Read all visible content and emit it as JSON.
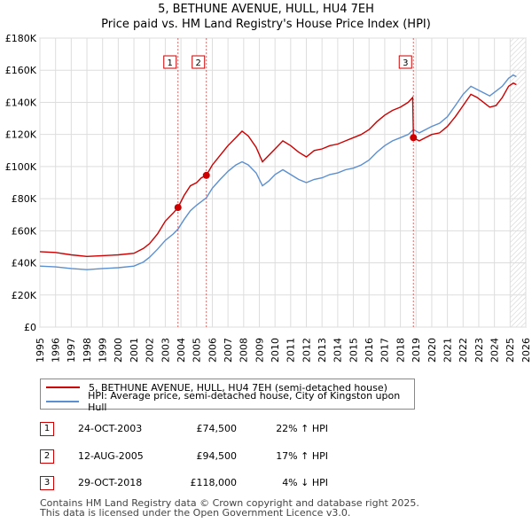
{
  "chart_data": {
    "type": "line",
    "title": "5, BETHUNE AVENUE, HULL, HU4 7EH",
    "subtitle": "Price paid vs. HM Land Registry's House Price Index (HPI)",
    "xlim": [
      1995,
      2026
    ],
    "ylim": [
      0,
      180000
    ],
    "x_ticks": [
      "1995",
      "1996",
      "1997",
      "1998",
      "1999",
      "2000",
      "2001",
      "2002",
      "2003",
      "2004",
      "2005",
      "2006",
      "2007",
      "2008",
      "2009",
      "2010",
      "2011",
      "2012",
      "2013",
      "2014",
      "2015",
      "2016",
      "2017",
      "2018",
      "2019",
      "2020",
      "2021",
      "2022",
      "2023",
      "2024",
      "2025",
      "2026"
    ],
    "y_ticks": [
      {
        "v": 0,
        "label": "£0"
      },
      {
        "v": 20000,
        "label": "£20K"
      },
      {
        "v": 40000,
        "label": "£40K"
      },
      {
        "v": 60000,
        "label": "£60K"
      },
      {
        "v": 80000,
        "label": "£80K"
      },
      {
        "v": 100000,
        "label": "£100K"
      },
      {
        "v": 120000,
        "label": "£120K"
      },
      {
        "v": 140000,
        "label": "£140K"
      },
      {
        "v": 160000,
        "label": "£160K"
      },
      {
        "v": 180000,
        "label": "£180K"
      }
    ],
    "series": [
      {
        "name": "5, BETHUNE AVENUE, HULL, HU4 7EH (semi-detached house)",
        "color": "#cc0000",
        "points": [
          [
            1995.0,
            47000
          ],
          [
            1996.0,
            46500
          ],
          [
            1997.0,
            45000
          ],
          [
            1998.0,
            44000
          ],
          [
            1999.0,
            44500
          ],
          [
            2000.0,
            45000
          ],
          [
            2001.0,
            46000
          ],
          [
            2001.6,
            49000
          ],
          [
            2002.0,
            52000
          ],
          [
            2002.5,
            58000
          ],
          [
            2003.0,
            66000
          ],
          [
            2003.5,
            71000
          ],
          [
            2003.81,
            74500
          ],
          [
            2004.2,
            82000
          ],
          [
            2004.6,
            88000
          ],
          [
            2005.0,
            90000
          ],
          [
            2005.3,
            93000
          ],
          [
            2005.62,
            94500
          ],
          [
            2006.0,
            101000
          ],
          [
            2006.5,
            107000
          ],
          [
            2007.0,
            113000
          ],
          [
            2007.5,
            118000
          ],
          [
            2007.9,
            122000
          ],
          [
            2008.3,
            119000
          ],
          [
            2008.8,
            112000
          ],
          [
            2009.2,
            103000
          ],
          [
            2009.6,
            107000
          ],
          [
            2010.0,
            111000
          ],
          [
            2010.5,
            116000
          ],
          [
            2011.0,
            113000
          ],
          [
            2011.5,
            109000
          ],
          [
            2012.0,
            106000
          ],
          [
            2012.5,
            110000
          ],
          [
            2013.0,
            111000
          ],
          [
            2013.5,
            113000
          ],
          [
            2014.0,
            114000
          ],
          [
            2014.5,
            116000
          ],
          [
            2015.0,
            118000
          ],
          [
            2015.5,
            120000
          ],
          [
            2016.0,
            123000
          ],
          [
            2016.5,
            128000
          ],
          [
            2017.0,
            132000
          ],
          [
            2017.5,
            135000
          ],
          [
            2018.0,
            137000
          ],
          [
            2018.5,
            140000
          ],
          [
            2018.78,
            143000
          ],
          [
            2018.83,
            118000
          ],
          [
            2019.2,
            116000
          ],
          [
            2019.6,
            118000
          ],
          [
            2020.0,
            120000
          ],
          [
            2020.5,
            121000
          ],
          [
            2021.0,
            125000
          ],
          [
            2021.5,
            131000
          ],
          [
            2022.0,
            138000
          ],
          [
            2022.5,
            145000
          ],
          [
            2022.9,
            143000
          ],
          [
            2023.3,
            140000
          ],
          [
            2023.7,
            137000
          ],
          [
            2024.1,
            138000
          ],
          [
            2024.5,
            143000
          ],
          [
            2024.9,
            150000
          ],
          [
            2025.2,
            152000
          ],
          [
            2025.4,
            151000
          ]
        ]
      },
      {
        "name": "HPI: Average price, semi-detached house, City of Kingston upon Hull",
        "color": "#5b8fd0",
        "points": [
          [
            1995.0,
            38000
          ],
          [
            1996.0,
            37500
          ],
          [
            1997.0,
            36500
          ],
          [
            1998.0,
            35800
          ],
          [
            1999.0,
            36500
          ],
          [
            2000.0,
            37000
          ],
          [
            2001.0,
            38000
          ],
          [
            2001.6,
            40500
          ],
          [
            2002.0,
            43500
          ],
          [
            2002.5,
            48500
          ],
          [
            2003.0,
            54000
          ],
          [
            2003.5,
            58000
          ],
          [
            2003.81,
            61000
          ],
          [
            2004.2,
            67000
          ],
          [
            2004.6,
            72500
          ],
          [
            2005.0,
            76000
          ],
          [
            2005.62,
            80500
          ],
          [
            2006.0,
            86500
          ],
          [
            2006.5,
            92000
          ],
          [
            2007.0,
            97000
          ],
          [
            2007.5,
            101000
          ],
          [
            2007.9,
            103000
          ],
          [
            2008.3,
            101000
          ],
          [
            2008.8,
            96000
          ],
          [
            2009.2,
            88000
          ],
          [
            2009.6,
            91000
          ],
          [
            2010.0,
            95000
          ],
          [
            2010.5,
            98000
          ],
          [
            2011.0,
            95000
          ],
          [
            2011.5,
            92000
          ],
          [
            2012.0,
            90000
          ],
          [
            2012.5,
            92000
          ],
          [
            2013.0,
            93000
          ],
          [
            2013.5,
            95000
          ],
          [
            2014.0,
            96000
          ],
          [
            2014.5,
            98000
          ],
          [
            2015.0,
            99000
          ],
          [
            2015.5,
            101000
          ],
          [
            2016.0,
            104000
          ],
          [
            2016.5,
            109000
          ],
          [
            2017.0,
            113000
          ],
          [
            2017.5,
            116000
          ],
          [
            2018.0,
            118000
          ],
          [
            2018.5,
            120000
          ],
          [
            2018.83,
            123000
          ],
          [
            2019.2,
            121000
          ],
          [
            2019.6,
            123000
          ],
          [
            2020.0,
            125000
          ],
          [
            2020.5,
            127000
          ],
          [
            2021.0,
            131000
          ],
          [
            2021.5,
            138000
          ],
          [
            2022.0,
            145000
          ],
          [
            2022.5,
            150000
          ],
          [
            2022.9,
            148000
          ],
          [
            2023.3,
            146000
          ],
          [
            2023.7,
            144000
          ],
          [
            2024.1,
            147000
          ],
          [
            2024.5,
            150000
          ],
          [
            2024.9,
            155000
          ],
          [
            2025.2,
            157000
          ],
          [
            2025.4,
            156000
          ]
        ]
      }
    ],
    "sales": [
      {
        "n": "1",
        "x": 2003.81,
        "price": 74500
      },
      {
        "n": "2",
        "x": 2005.62,
        "price": 94500
      },
      {
        "n": "3",
        "x": 2018.83,
        "price": 118000
      }
    ],
    "future_shade_from": 2025.0
  },
  "legend": {
    "property_label": "5, BETHUNE AVENUE, HULL, HU4 7EH (semi-detached house)",
    "hpi_label": "HPI: Average price, semi-detached house, City of Kingston upon Hull"
  },
  "transactions": [
    {
      "n": "1",
      "date": "24-OCT-2003",
      "price": "£74,500",
      "hpi": "22% ↑ HPI"
    },
    {
      "n": "2",
      "date": "12-AUG-2005",
      "price": "£94,500",
      "hpi": "17% ↑ HPI"
    },
    {
      "n": "3",
      "date": "29-OCT-2018",
      "price": "£118,000",
      "hpi": "4% ↓ HPI"
    }
  ],
  "footer": {
    "line1": "Contains HM Land Registry data © Crown copyright and database right 2025.",
    "line2": "This data is licensed under the Open Government Licence v3.0."
  },
  "colors": {
    "property": "#cc0000",
    "hpi": "#5b8fd0",
    "marker_border": "#cc0000",
    "grid": "#dddddd"
  }
}
